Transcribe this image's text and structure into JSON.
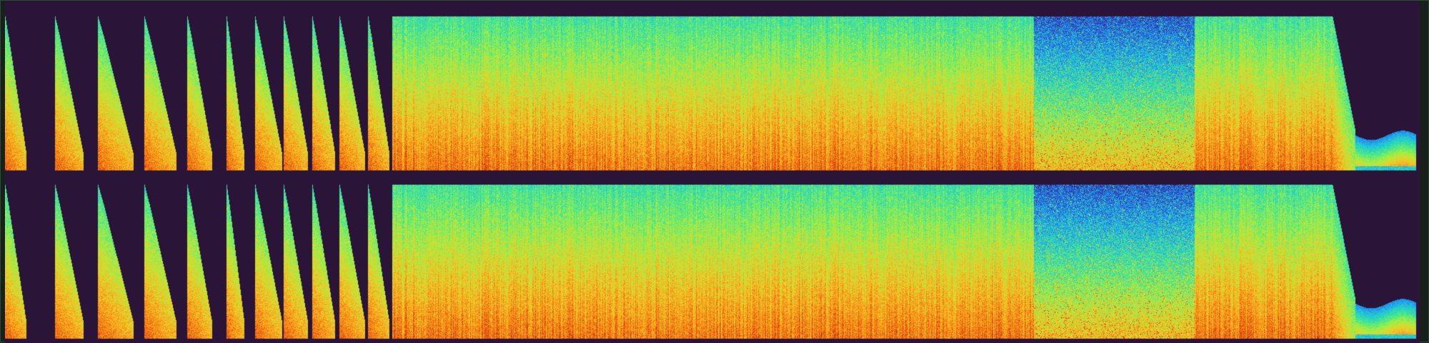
{
  "view": {
    "type": "spectrogram",
    "channels": 2,
    "colormap": "turbo",
    "background_color": "#2a1438",
    "frame_color": "#2f4a33"
  }
}
